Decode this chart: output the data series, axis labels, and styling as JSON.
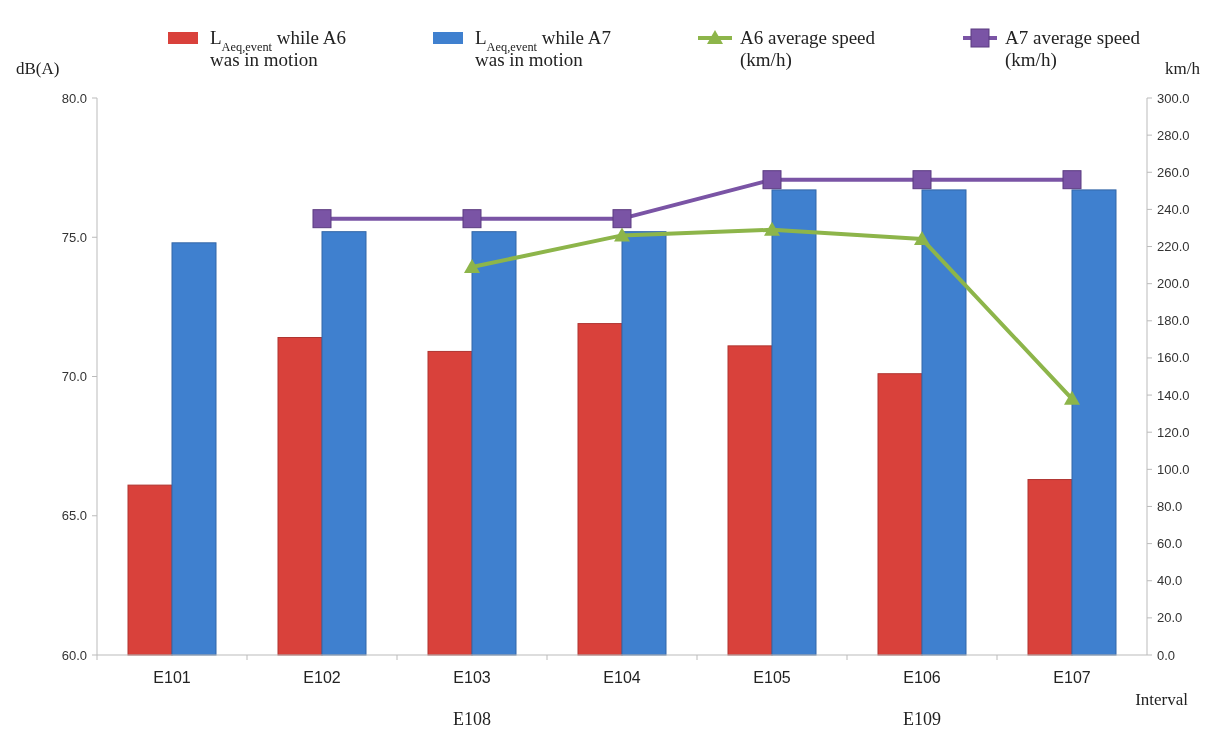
{
  "chart_data": {
    "type": "bar",
    "categories": [
      "E101",
      "E102",
      "E103",
      "E104",
      "E105",
      "E106",
      "E107"
    ],
    "series": [
      {
        "name": "L$_{Aeq,event}$ while A6 was in motion",
        "color": "#d9413b",
        "values": [
          66.1,
          71.4,
          70.9,
          71.9,
          71.1,
          70.1,
          66.3
        ]
      },
      {
        "name": "L$_{Aeq,event}$ while A7 was in motion",
        "color": "#3f80cf",
        "values": [
          74.8,
          75.2,
          75.2,
          75.2,
          76.7,
          76.7,
          76.7
        ]
      },
      {
        "name": "A6 average speed (km/h)",
        "type": "line",
        "axis": "y2",
        "marker": "triangle",
        "color": "#8db54a",
        "values": [
          null,
          null,
          209,
          226,
          229,
          224,
          138
        ]
      },
      {
        "name": "A7 average speed (km/h)",
        "type": "line",
        "axis": "y2",
        "marker": "square",
        "color": "#7a54a5",
        "values": [
          null,
          235,
          235,
          235,
          256,
          256,
          256
        ]
      }
    ],
    "ylabel": "dB(A)",
    "y2label": "km/h",
    "xlabel": "Interval",
    "ylim": [
      60,
      80
    ],
    "yticks": [
      {
        "value": 60,
        "label": "60.0"
      },
      {
        "value": 65,
        "label": "65.0"
      },
      {
        "value": 70,
        "label": "70.0"
      },
      {
        "value": 75,
        "label": "75.0"
      },
      {
        "value": 80,
        "label": "80.0"
      }
    ],
    "y2lim": [
      0,
      300
    ],
    "y2ticks": [
      {
        "value": 0,
        "label": "0.0"
      },
      {
        "value": 20,
        "label": "20.0"
      },
      {
        "value": 40,
        "label": "40.0"
      },
      {
        "value": 60,
        "label": "60.0"
      },
      {
        "value": 80,
        "label": "80.0"
      },
      {
        "value": 100,
        "label": "100.0"
      },
      {
        "value": 120,
        "label": "120.0"
      },
      {
        "value": 140,
        "label": "140.0"
      },
      {
        "value": 160,
        "label": "160.0"
      },
      {
        "value": 180,
        "label": "180.0"
      },
      {
        "value": 200,
        "label": "200.0"
      },
      {
        "value": 220,
        "label": "220.0"
      },
      {
        "value": 240,
        "label": "240.0"
      },
      {
        "value": 260,
        "label": "260.0"
      },
      {
        "value": 280,
        "label": "280.0"
      },
      {
        "value": 300,
        "label": "300.0"
      }
    ],
    "annotations": [
      "E108",
      "E109"
    ],
    "legend": "top",
    "grid": false
  }
}
